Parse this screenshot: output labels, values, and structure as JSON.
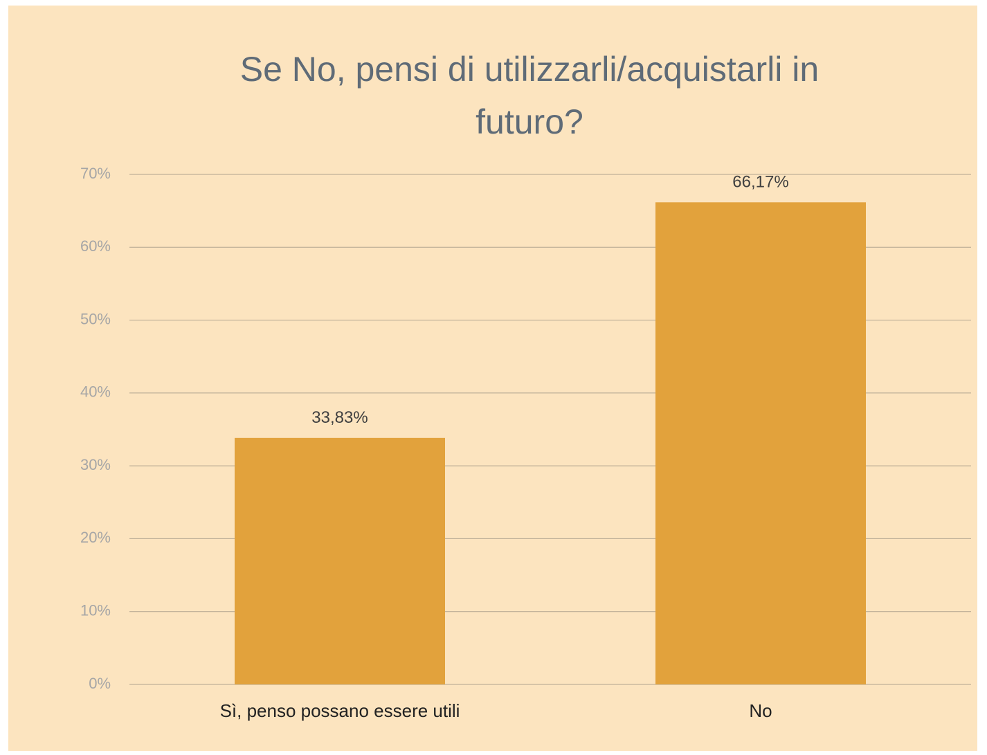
{
  "chart_data": {
    "type": "bar",
    "title": "Se No, pensi di utilizzarli/acquistarli in futuro?",
    "categories": [
      "Sì, penso possano essere utili",
      "No"
    ],
    "values": [
      33.83,
      66.17
    ],
    "value_labels": [
      "33,83%",
      "66,17%"
    ],
    "color": "#e2a23c",
    "ylim": [
      0,
      70
    ],
    "yticks": [
      {
        "value": 0,
        "label": "0%"
      },
      {
        "value": 10,
        "label": "10%"
      },
      {
        "value": 20,
        "label": "20%"
      },
      {
        "value": 30,
        "label": "30%"
      },
      {
        "value": 40,
        "label": "40%"
      },
      {
        "value": 50,
        "label": "50%"
      },
      {
        "value": 60,
        "label": "60%"
      },
      {
        "value": 70,
        "label": "70%"
      }
    ],
    "grid": true
  }
}
